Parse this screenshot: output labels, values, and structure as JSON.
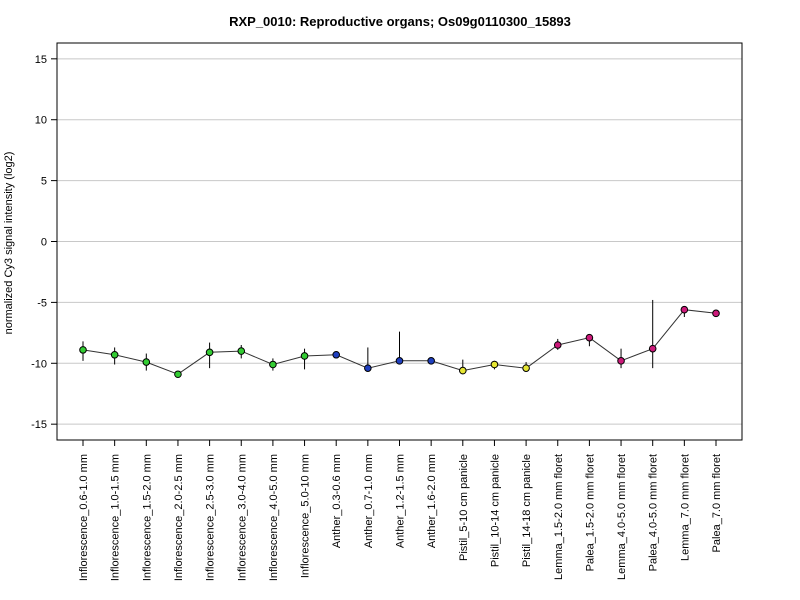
{
  "chart_data": {
    "type": "line",
    "title": "RXP_0010: Reproductive organs; Os09g0110300_15893",
    "xlabel": "",
    "ylabel": "normalized Cy3 signal intensity (log2)",
    "ylim": [
      -16.3,
      16.3
    ],
    "yticks": [
      -15,
      -10,
      -5,
      0,
      5,
      10,
      15
    ],
    "grid": true,
    "colors": {
      "green": "#33cc33",
      "blue": "#1f3fbf",
      "yellow": "#e6e633",
      "magenta": "#cc1a7a"
    },
    "categories": [
      "Inflorescence_0.6-1.0 mm",
      "Inflorescence_1.0-1.5 mm",
      "Inflorescence_1.5-2.0 mm",
      "Inflorescence_2.0-2.5 mm",
      "Inflorescence_2.5-3.0 mm",
      "Inflorescence_3.0-4.0 mm",
      "Inflorescence_4.0-5.0 mm",
      "Inflorescence_5.0-10 mm",
      "Anther_0.3-0.6 mm",
      "Anther_0.7-1.0 mm",
      "Anther_1.2-1.5 mm",
      "Anther_1.6-2.0 mm",
      "Pistil_5-10 cm panicle",
      "Pistil_10-14 cm panicle",
      "Pistil_14-18 cm panicle",
      "Lemma_1.5-2.0 mm floret",
      "Palea_1.5-2.0 mm floret",
      "Lemma_4.0-5.0 mm floret",
      "Palea_4.0-5.0 mm floret",
      "Lemma_7.0 mm floret",
      "Palea_7.0 mm floret"
    ],
    "values": [
      -8.9,
      -9.3,
      -9.9,
      -10.9,
      -9.1,
      -9.0,
      -10.1,
      -9.4,
      -9.3,
      -10.4,
      -9.8,
      -9.8,
      -10.6,
      -10.1,
      -10.4,
      -8.5,
      -7.9,
      -9.8,
      -8.8,
      -5.6,
      -5.9
    ],
    "errors": [
      [
        -9.8,
        -8.2
      ],
      [
        -10.1,
        -8.7
      ],
      [
        -10.6,
        -9.2
      ],
      [
        -11.0,
        -10.8
      ],
      [
        -10.4,
        -8.3
      ],
      [
        -9.6,
        -8.5
      ],
      [
        -10.6,
        -9.6
      ],
      [
        -10.5,
        -8.8
      ],
      [
        -9.5,
        -9.1
      ],
      [
        -10.6,
        -8.7
      ],
      [
        -10.0,
        -7.4
      ],
      [
        -10.0,
        -9.6
      ],
      [
        -10.9,
        -9.7
      ],
      [
        -10.5,
        -9.8
      ],
      [
        -10.7,
        -9.9
      ],
      [
        -8.9,
        -8.0
      ],
      [
        -8.6,
        -7.7
      ],
      [
        -10.4,
        -8.8
      ],
      [
        -10.4,
        -4.8
      ],
      [
        -6.2,
        -5.5
      ],
      [
        -6.2,
        -5.6
      ]
    ],
    "point_colors": [
      "green",
      "green",
      "green",
      "green",
      "green",
      "green",
      "green",
      "green",
      "blue",
      "blue",
      "blue",
      "blue",
      "yellow",
      "yellow",
      "yellow",
      "magenta",
      "magenta",
      "magenta",
      "magenta",
      "magenta",
      "magenta"
    ]
  }
}
